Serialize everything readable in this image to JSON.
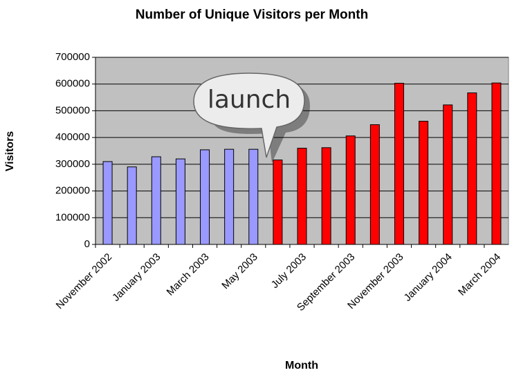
{
  "chart_data": {
    "type": "bar",
    "title": "Number of Unique Visitors per Month",
    "x_label": "Month",
    "y_label": "Visitors",
    "annotation": "launch",
    "categories": [
      "November 2002",
      null,
      "January 2003",
      null,
      "March 2003",
      null,
      "May 2003",
      null,
      "July 2003",
      null,
      "September 2003",
      null,
      "November 2003",
      null,
      "January 2004",
      null,
      "March 2004"
    ],
    "values": [
      310000,
      290000,
      328000,
      320000,
      354000,
      356000,
      356000,
      316000,
      360000,
      362000,
      406000,
      448000,
      603000,
      461000,
      522000,
      567000,
      604000
    ],
    "colors": [
      "#9999ff",
      "#9999ff",
      "#9999ff",
      "#9999ff",
      "#9999ff",
      "#9999ff",
      "#9999ff",
      "#ff0000",
      "#ff0000",
      "#ff0000",
      "#ff0000",
      "#ff0000",
      "#ff0000",
      "#ff0000",
      "#ff0000",
      "#ff0000",
      "#ff0000"
    ],
    "ylim": [
      0,
      700000
    ],
    "yticks": [
      0,
      100000,
      200000,
      300000,
      400000,
      500000,
      600000,
      700000
    ],
    "grid": true,
    "plot_background": "#c0c0c0"
  }
}
